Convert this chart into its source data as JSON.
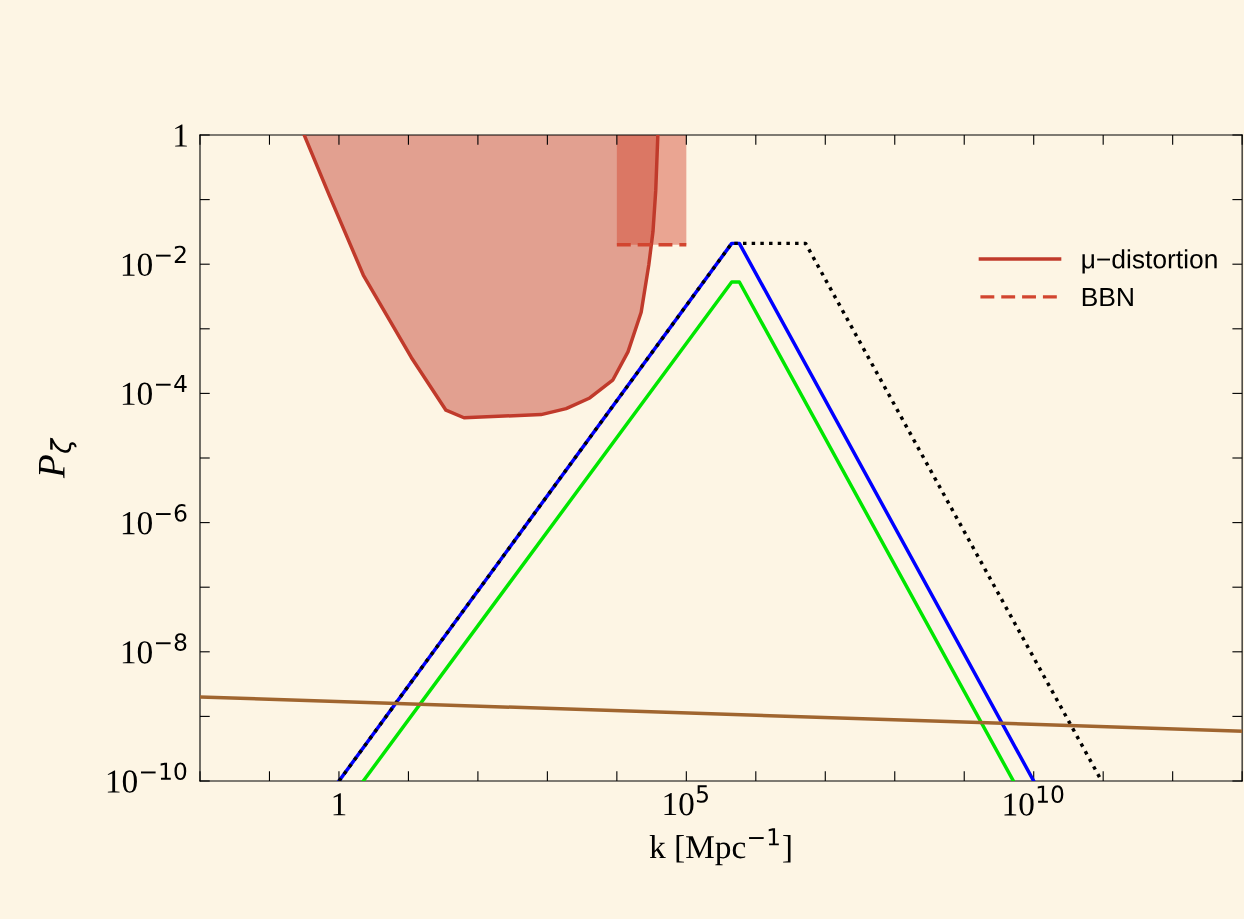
{
  "chart_data": {
    "type": "line",
    "xlabel": "k [Mpc$^{−1}$]",
    "ylabel": "P$_{ζ}$",
    "log": "xy",
    "xlim": [
      0.01,
      10000000000000.0
    ],
    "ylim": [
      1e-10,
      1
    ],
    "xticks": [
      {
        "value": 0.01,
        "label": null
      },
      {
        "value": 0.1,
        "label": null
      },
      {
        "value": 1,
        "label": "1"
      },
      {
        "value": 10,
        "label": null
      },
      {
        "value": 100,
        "label": null
      },
      {
        "value": 1000,
        "label": null
      },
      {
        "value": 10000,
        "label": null
      },
      {
        "value": 100000,
        "label": "10$^{5}$"
      },
      {
        "value": 1000000.0,
        "label": null
      },
      {
        "value": 10000000.0,
        "label": null
      },
      {
        "value": 100000000.0,
        "label": null
      },
      {
        "value": 1000000000.0,
        "label": null
      },
      {
        "value": 10000000000.0,
        "label": "10$^{10}$"
      },
      {
        "value": 100000000000.0,
        "label": null
      },
      {
        "value": 1000000000000.0,
        "label": null
      },
      {
        "value": 10000000000000.0,
        "label": null
      }
    ],
    "yticks": [
      {
        "value": 1,
        "label": "1"
      },
      {
        "value": 0.1,
        "label": null
      },
      {
        "value": 0.01,
        "label": "10$^{−2}$"
      },
      {
        "value": 0.001,
        "label": null
      },
      {
        "value": 0.0001,
        "label": "10$^{−4}$"
      },
      {
        "value": 1e-05,
        "label": null
      },
      {
        "value": 1e-06,
        "label": "10$^{−6}$"
      },
      {
        "value": 1e-07,
        "label": null
      },
      {
        "value": 1e-08,
        "label": "10$^{−8}$"
      },
      {
        "value": 1e-09,
        "label": null
      },
      {
        "value": 1e-10,
        "label": "10$^{−10}$"
      }
    ],
    "grid": false,
    "legend": "top right",
    "series": [
      {
        "name": "μ−distortion",
        "color": "#c03a2b",
        "line_style": "solid",
        "x": [
          0.316,
          0.724,
          2.24,
          11,
          34.7,
          63,
          813,
          1862,
          4074,
          8710,
          14454,
          22387,
          28840,
          33113,
          36308,
          38905
        ],
        "values": [
          1,
          0.117,
          0.0068,
          0.00036,
          5.5e-05,
          4.2e-05,
          4.7e-05,
          5.8e-05,
          8.5e-05,
          0.00016,
          0.00044,
          0.0018,
          0.0098,
          0.032,
          0.14,
          1
        ],
        "lower": [
          1,
          0.117,
          0.0068,
          0.00036,
          5.5e-05,
          4.2e-05,
          4.7e-05,
          5.8e-05,
          8.5e-05,
          0.00016,
          0.00044,
          0.0018,
          0.0098,
          0.032,
          0.14,
          1
        ],
        "upper": [
          1,
          1,
          1,
          1,
          1,
          1,
          1,
          1,
          1,
          1,
          1,
          1,
          1,
          1,
          1,
          1
        ]
      },
      {
        "name": "BBN",
        "color": "#d2452f",
        "line_style": "dashed",
        "x": [
          10000,
          100000
        ],
        "values": [
          0.02,
          0.02
        ],
        "lower": [
          0.02,
          0.02
        ],
        "upper": [
          1,
          1
        ]
      },
      {
        "color": "#0000ff",
        "line_style": "solid",
        "x": [
          1,
          450000,
          580000,
          10000000000.0
        ],
        "values": [
          1e-10,
          0.021,
          0.021,
          1e-10
        ]
      },
      {
        "color": "#00e600",
        "line_style": "solid",
        "x": [
          2.24,
          450000,
          580000,
          5100000000.0
        ],
        "values": [
          1e-10,
          0.0053,
          0.0053,
          1e-10
        ]
      },
      {
        "color": "#000000",
        "line_style": "dotted",
        "x": [
          1,
          450000,
          5200000.0,
          95000000000.0
        ],
        "values": [
          1e-10,
          0.021,
          0.021,
          1e-10
        ]
      },
      {
        "color": "#a0652f",
        "line_style": "solid",
        "x": [
          0.01,
          10000000000000.0
        ],
        "values": [
          2e-09,
          5.9e-10
        ]
      }
    ]
  }
}
